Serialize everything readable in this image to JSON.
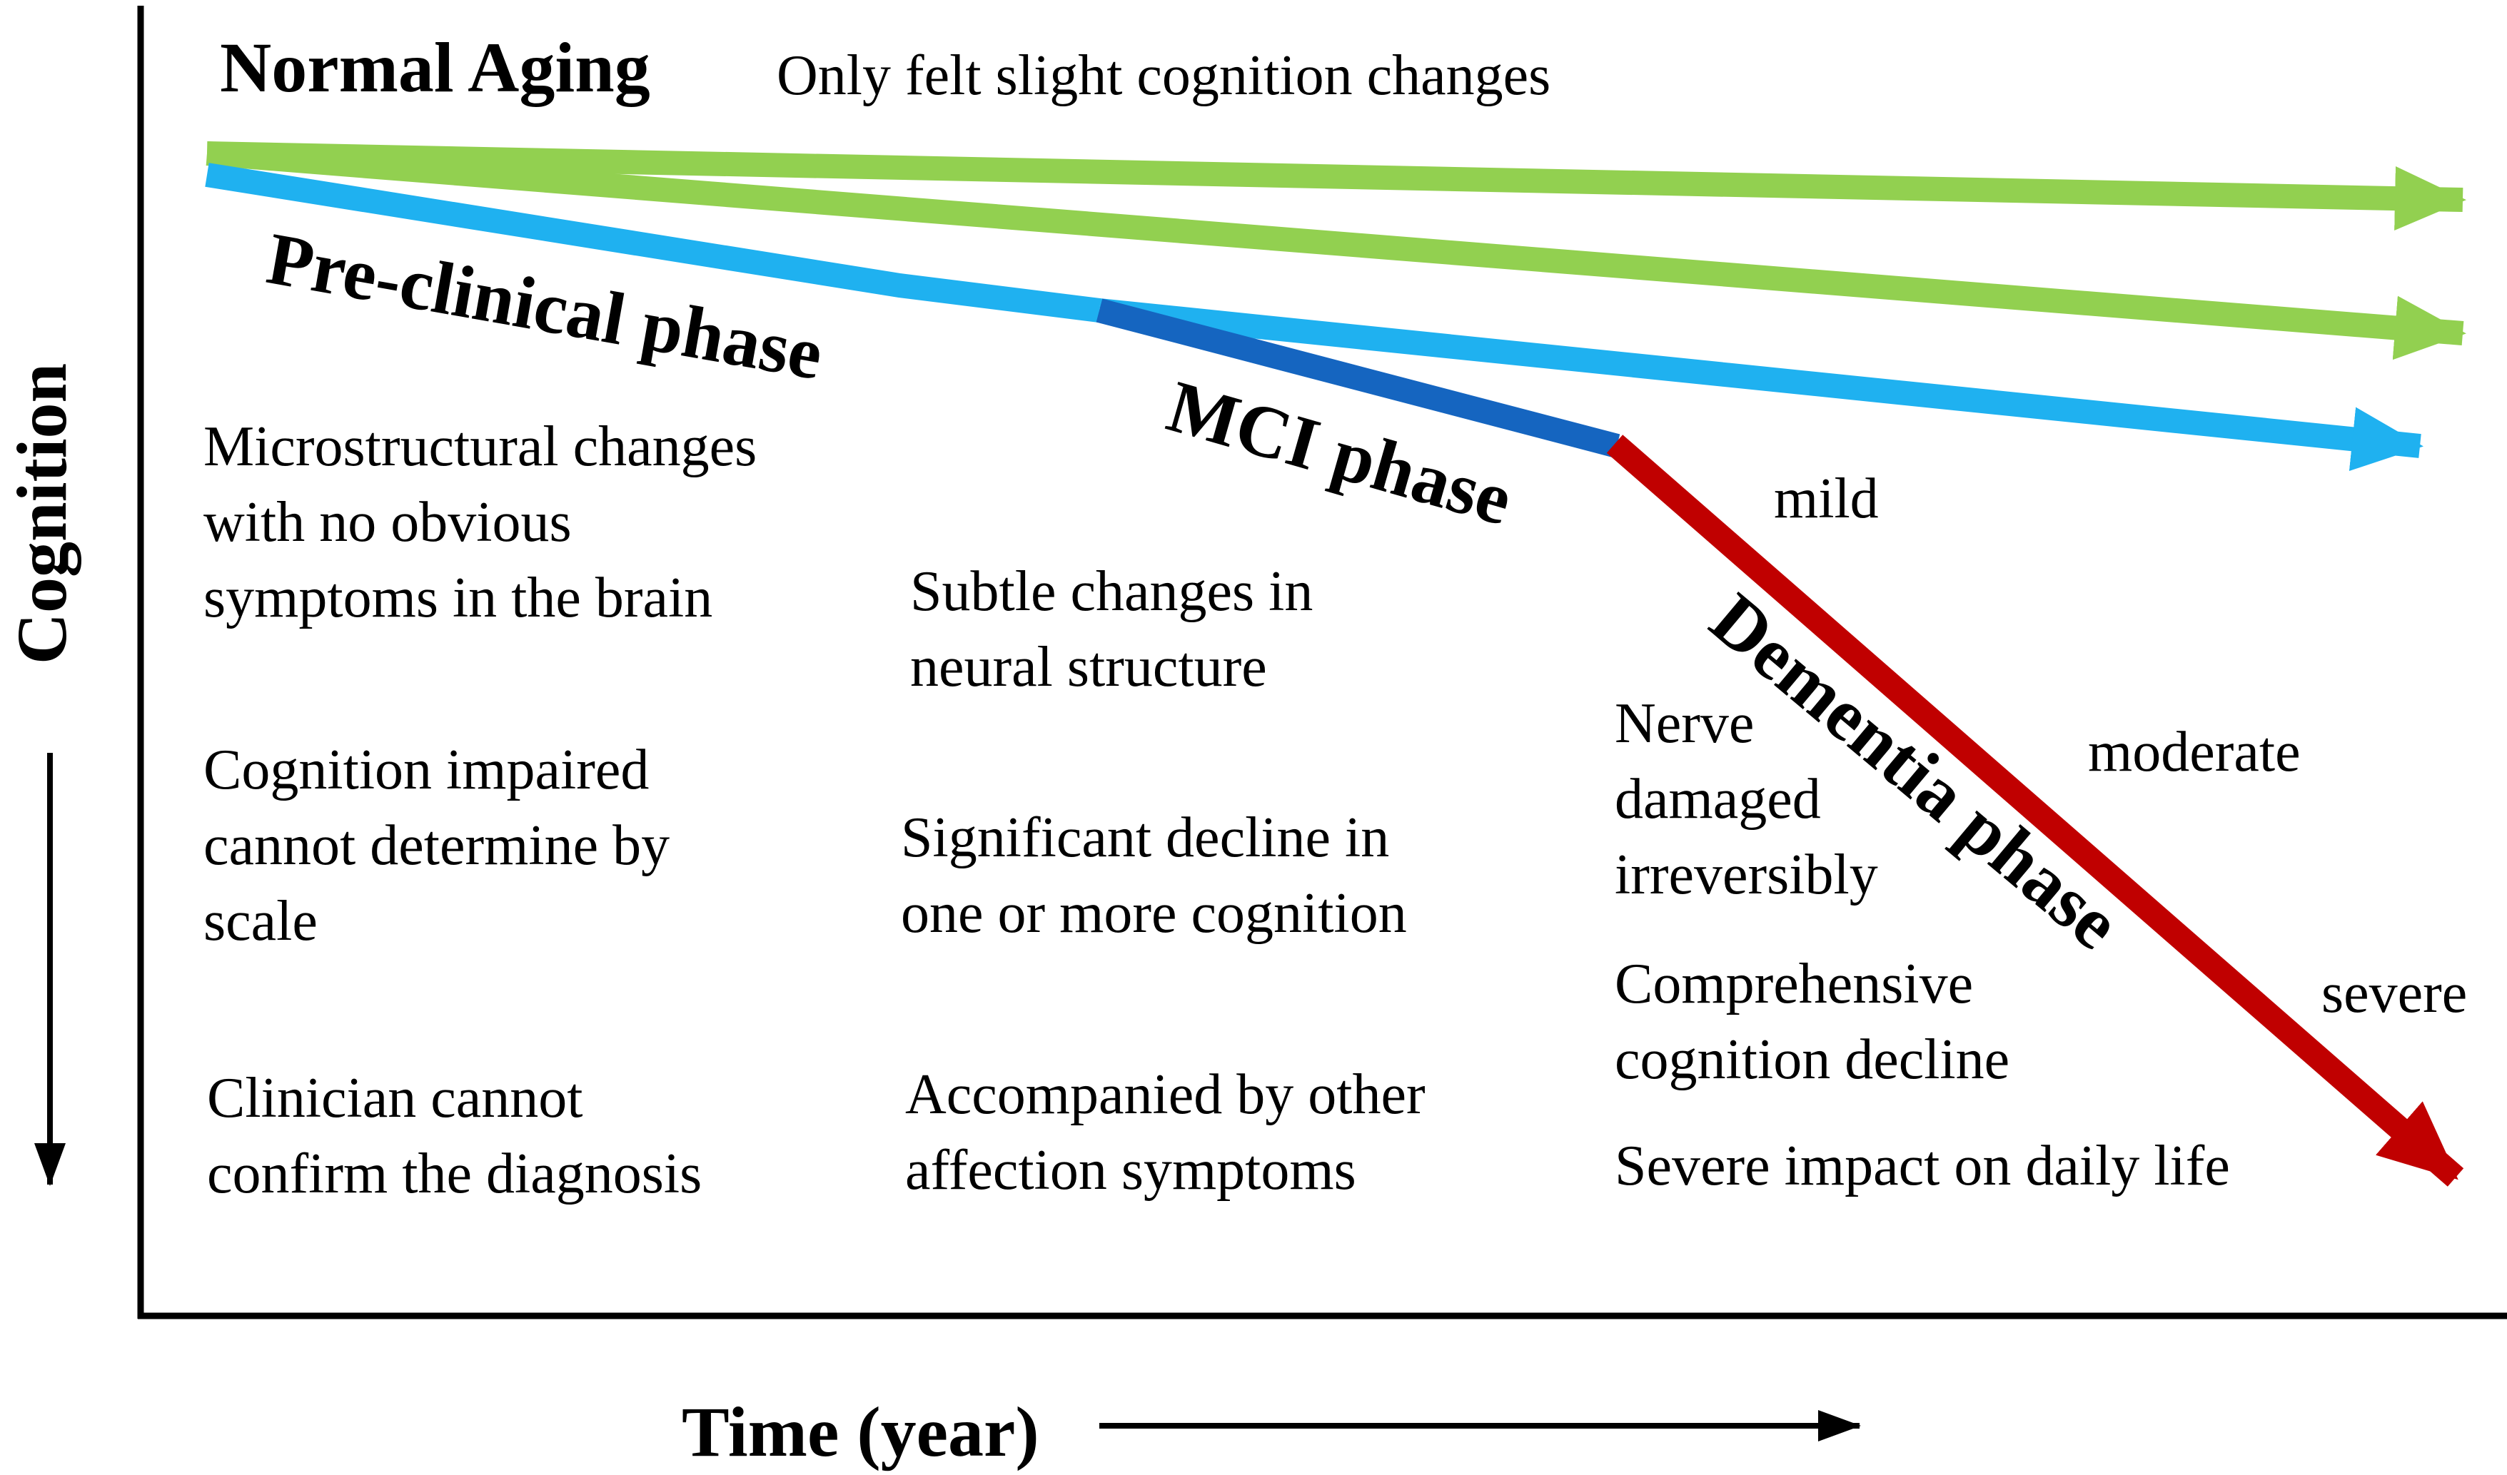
{
  "axes": {
    "y_label": "Cognition",
    "x_label": "Time (year)"
  },
  "header": {
    "normal_aging": "Normal Aging",
    "normal_aging_desc": "Only felt slight cognition changes"
  },
  "phases": {
    "preclinical": "Pre-clinical phase",
    "mci": "MCI phase",
    "dementia": "Dementia phase"
  },
  "severity": {
    "mild": "mild",
    "moderate": "moderate",
    "severe": "severe"
  },
  "preclinical_notes": [
    [
      "Microstructural changes",
      "with no obvious",
      "symptoms in the brain"
    ],
    [
      "Cognition impaired",
      "cannot determine by",
      "scale"
    ],
    [
      "Clinician cannot",
      "confirm the diagnosis"
    ]
  ],
  "mci_notes": [
    [
      "Subtle changes in",
      "neural structure"
    ],
    [
      "Significant decline in",
      "one or more cognition"
    ],
    [
      "Accompanied by other",
      "affection symptoms"
    ]
  ],
  "dementia_notes": [
    [
      "Nerve",
      "damaged",
      "irreversibly"
    ],
    [
      "Comprehensive",
      "cognition decline"
    ],
    [
      "Severe impact on daily life"
    ]
  ],
  "colors": {
    "normal_aging": "#92d050",
    "preclinical": "#1fb1f0",
    "mci": "#1565c0",
    "dementia": "#c00000",
    "axis": "#000000"
  }
}
